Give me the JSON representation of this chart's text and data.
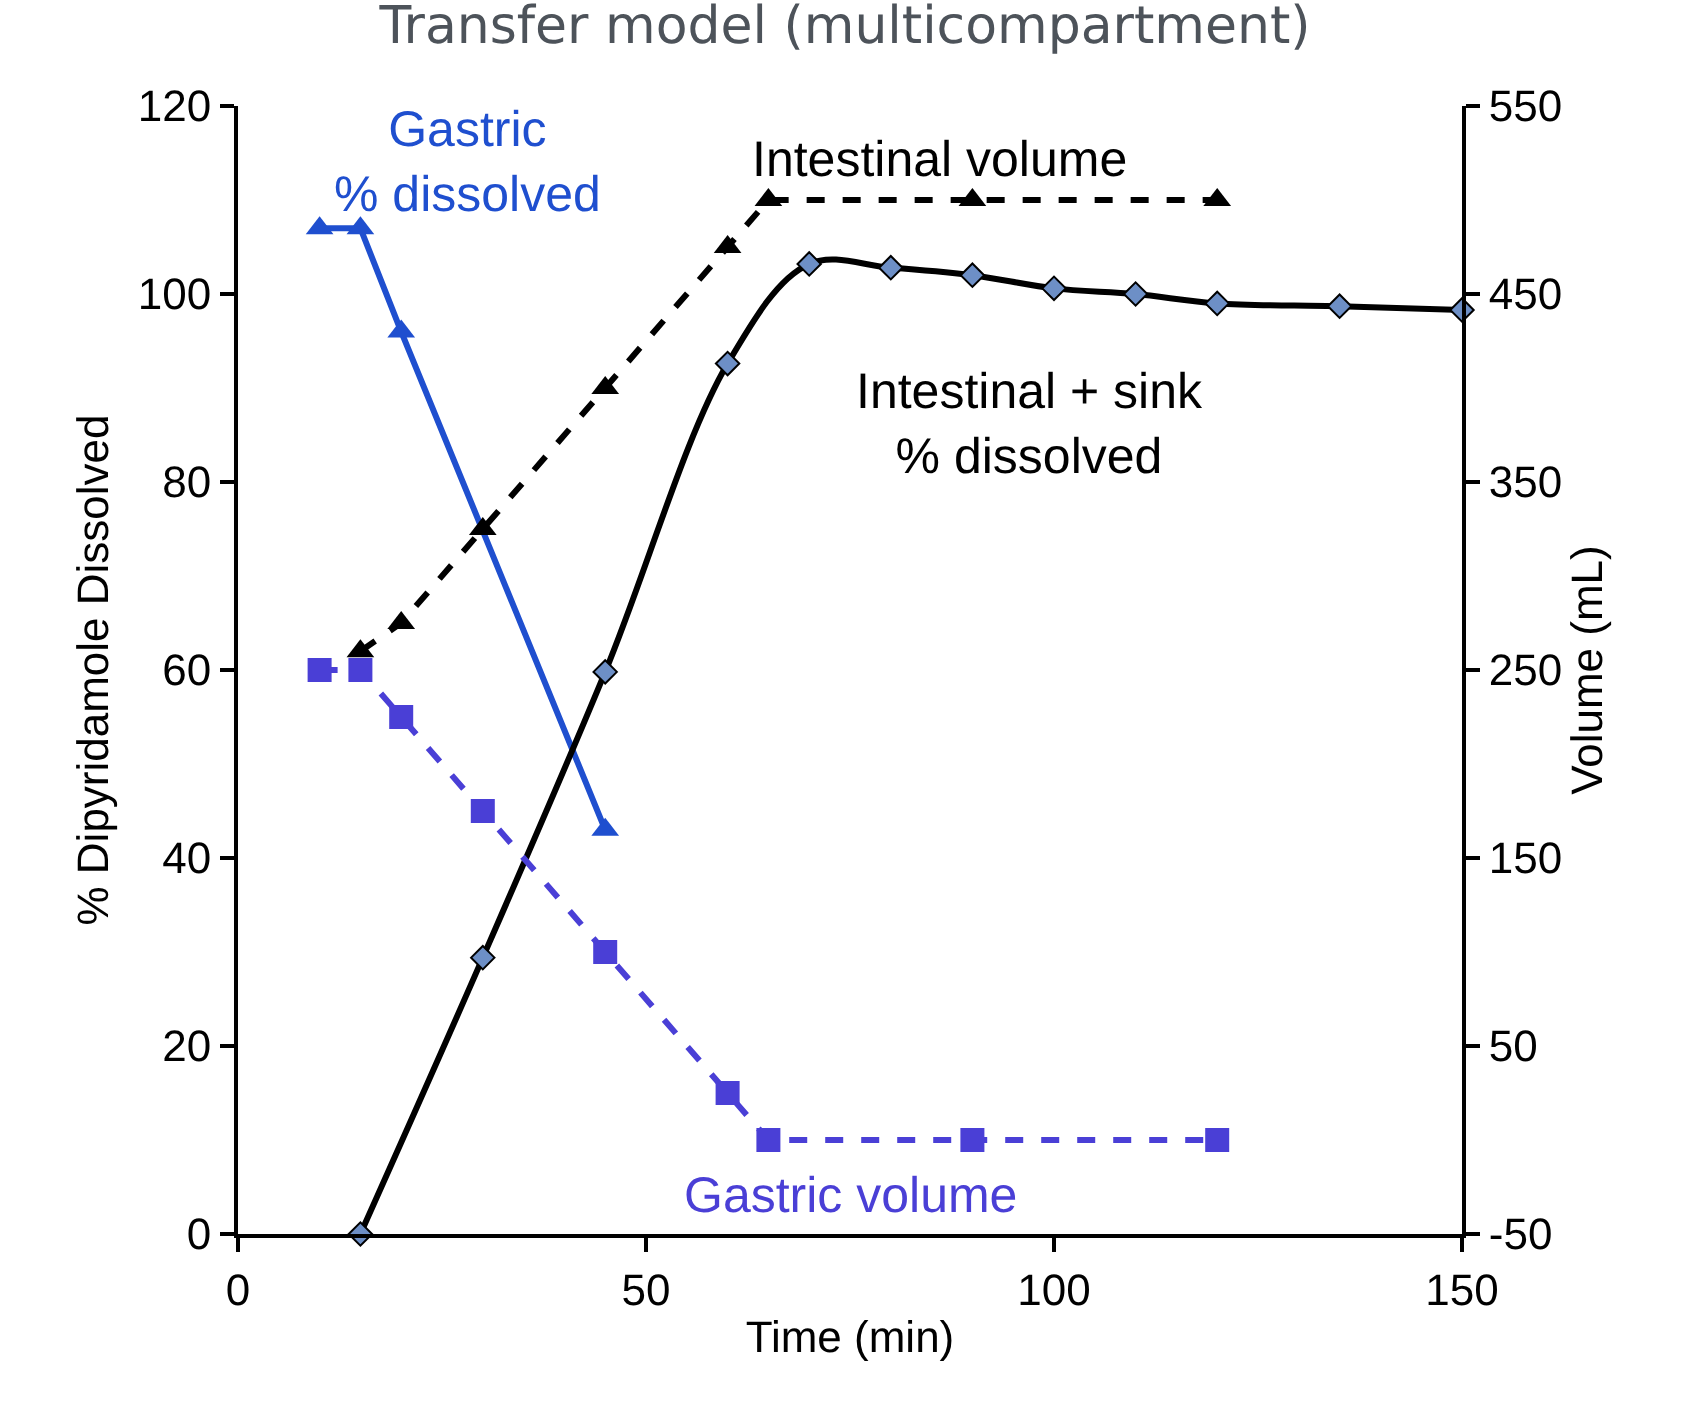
{
  "chart_data": {
    "type": "line",
    "title": "Transfer model (multicompartment)",
    "xlabel": "Time (min)",
    "ylabel": "% Dipyridamole Dissolved",
    "y2label": "Volume (mL)",
    "xlim": [
      0,
      150
    ],
    "xticks": [
      0,
      50,
      100,
      150
    ],
    "ylim": [
      0,
      120
    ],
    "yticks": [
      0,
      20,
      40,
      60,
      80,
      100,
      120
    ],
    "y2lim": [
      -50,
      550
    ],
    "y2ticks": [
      -50,
      50,
      150,
      250,
      350,
      450,
      550
    ],
    "legend": false,
    "series": [
      {
        "name": "Gastric\n% dissolved",
        "color": "#1f4fcf",
        "marker": "triangle",
        "line_style": "solid",
        "x": [
          10,
          15,
          20,
          45
        ],
        "values": [
          107,
          107,
          96,
          43
        ]
      },
      {
        "name": "Intestinal volume",
        "color": "#000000",
        "marker": "triangle",
        "line_style": "dashed",
        "axis": "y2",
        "x": [
          15,
          20,
          30,
          45,
          60,
          65,
          90,
          120
        ],
        "values": [
          260,
          275,
          325,
          400,
          475,
          500,
          500,
          500
        ]
      },
      {
        "name": "Gastric volume",
        "color": "#4a3fd6",
        "marker": "square",
        "line_style": "dashed",
        "axis": "y2",
        "x": [
          10,
          15,
          20,
          30,
          45,
          60,
          65,
          90,
          120
        ],
        "values": [
          250,
          250,
          225,
          175,
          100,
          25,
          0,
          0,
          0
        ]
      },
      {
        "name": "Intestinal + sink\n% dissolved",
        "color": "#000000",
        "colors": [
          "#6d8fc6",
          "#6d8fc6",
          "#6d8fc6",
          "#6d8fc6",
          "#6d8fc6",
          "#6d8fc6",
          "#6d8fc6",
          "#6d8fc6",
          "#6d8fc6",
          "#6d8fc6",
          "#6d8fc6",
          "#6d8fc6"
        ],
        "marker": "diamond",
        "line_style": "solid",
        "x": [
          15,
          30,
          45,
          60,
          70,
          80,
          90,
          100,
          110,
          120,
          135,
          150
        ],
        "values": [
          0,
          29.4,
          59.8,
          92.6,
          103.2,
          102.8,
          102,
          100.6,
          100,
          99,
          98.7,
          98.3
        ]
      }
    ]
  }
}
